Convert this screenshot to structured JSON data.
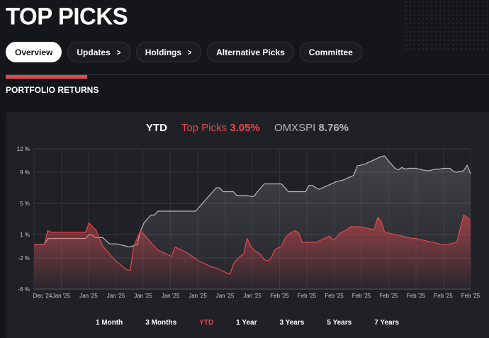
{
  "page": {
    "title": "TOP PICKS"
  },
  "tabs": [
    {
      "label": "Overview",
      "active": true,
      "chevron": false
    },
    {
      "label": "Updates",
      "active": false,
      "chevron": true
    },
    {
      "label": "Holdings",
      "active": false,
      "chevron": true
    },
    {
      "label": "Alternative Picks",
      "active": false,
      "chevron": false
    },
    {
      "label": "Committee",
      "active": false,
      "chevron": false
    }
  ],
  "section": {
    "title": "PORTFOLIO RETURNS"
  },
  "legend": {
    "period": "YTD",
    "top_picks_label": "Top Picks",
    "top_picks_value": "3.05%",
    "omx_label": "OMXSPI",
    "omx_value": "8.76%"
  },
  "colors": {
    "top_picks": "#e5484d",
    "omxspi": "#9a9ba1",
    "accent": "#e5484d",
    "background": "#15161a",
    "card": "#202127"
  },
  "ranges": [
    {
      "label": "1 Month",
      "active": false
    },
    {
      "label": "3 Months",
      "active": false
    },
    {
      "label": "YTD",
      "active": true
    },
    {
      "label": "1 Year",
      "active": false
    },
    {
      "label": "3 Years",
      "active": false
    },
    {
      "label": "5 Years",
      "active": false
    },
    {
      "label": "7 Years",
      "active": false
    }
  ],
  "chart_data": {
    "type": "area",
    "ylim": [
      -6,
      12
    ],
    "y_ticks": [
      12,
      9,
      5,
      1,
      -2,
      -6
    ],
    "y_tick_labels": [
      "12 %",
      "9 %",
      "5 %",
      "1 %",
      "-2 %",
      "-6 %"
    ],
    "x_tick_labels": [
      "Dec '24",
      "Jan '25",
      "Jan '25",
      "Jan '25",
      "Jan '25",
      "Jan '25",
      "Jan '25",
      "Jan '25",
      "Jan '25",
      "Feb '25",
      "Feb '25",
      "Feb '25",
      "Feb '25",
      "Feb '25",
      "Feb '25",
      "Feb '25",
      "Feb '25"
    ],
    "grid": true,
    "x": [
      0,
      1,
      2,
      3,
      4,
      5,
      6,
      7,
      8,
      9,
      10,
      11,
      12,
      13,
      14,
      15,
      16,
      17,
      18,
      19,
      20,
      21,
      22,
      23,
      24,
      25,
      26,
      27,
      28,
      29,
      30,
      31,
      32,
      33,
      34,
      35,
      36,
      37,
      38,
      39,
      40,
      41,
      42,
      43,
      44,
      45,
      46,
      47,
      48,
      49,
      50,
      51,
      52,
      53,
      54,
      55,
      56,
      57,
      58,
      59,
      60,
      61,
      62,
      63,
      64,
      65,
      66,
      67,
      68,
      69,
      70,
      71,
      72,
      73,
      74,
      75,
      76,
      77,
      78,
      79,
      80,
      81,
      82,
      83,
      84,
      85,
      86,
      87,
      88,
      89,
      90,
      91,
      92,
      93,
      94,
      95,
      96,
      97,
      98,
      99,
      100,
      101,
      102,
      103,
      104,
      105,
      106,
      107,
      108,
      109,
      110,
      111,
      112,
      113,
      114,
      115,
      116,
      117,
      118,
      119,
      120,
      121,
      122,
      123,
      124,
      125,
      126,
      127
    ],
    "series": [
      {
        "name": "OMXSPI",
        "values": [
          -0.3,
          -0.3,
          -0.3,
          -0.3,
          0.5,
          0.5,
          0.5,
          0.5,
          0.5,
          0.5,
          0.5,
          0.5,
          0.5,
          0.5,
          0.5,
          0.5,
          1.0,
          0.9,
          0.6,
          0.6,
          0.6,
          0.2,
          -0.2,
          -0.2,
          -0.2,
          -0.3,
          -0.4,
          -0.5,
          -0.6,
          -0.4,
          -0.3,
          1.5,
          2.5,
          3.0,
          3.5,
          3.5,
          4.0,
          4.0,
          4.0,
          4.0,
          4.0,
          4.0,
          4.0,
          4.0,
          4.0,
          4.0,
          4.0,
          4.0,
          4.5,
          5.0,
          5.5,
          6.0,
          6.5,
          7.0,
          7.0,
          6.5,
          6.5,
          6.5,
          6.5,
          6.0,
          6.0,
          6.0,
          6.0,
          5.9,
          5.9,
          6.5,
          7.0,
          7.5,
          7.5,
          7.5,
          7.5,
          7.5,
          7.5,
          7.0,
          6.5,
          6.5,
          6.5,
          6.5,
          6.5,
          6.5,
          7.3,
          7.3,
          7.0,
          6.8,
          7.0,
          7.2,
          7.4,
          7.6,
          7.8,
          7.9,
          8.0,
          8.2,
          8.4,
          8.6,
          9.8,
          9.9,
          10.0,
          10.2,
          10.4,
          10.6,
          10.8,
          11.0,
          11.1,
          10.5,
          10.0,
          9.5,
          9.3,
          9.6,
          9.4,
          9.5,
          9.5,
          9.5,
          9.4,
          9.3,
          9.2,
          9.2,
          9.3,
          9.4,
          9.4,
          9.5,
          9.5,
          9.5,
          9.1,
          9.0,
          9.1,
          9.2,
          9.9,
          8.8
        ]
      },
      {
        "name": "Top Picks",
        "values": [
          -0.3,
          -0.3,
          -0.3,
          -0.3,
          1.5,
          1.3,
          1.3,
          1.3,
          1.3,
          1.3,
          1.3,
          1.3,
          1.3,
          1.3,
          1.3,
          1.3,
          2.5,
          2.0,
          1.6,
          0.5,
          -0.5,
          -1.0,
          -1.5,
          -2.0,
          -2.5,
          -2.8,
          -3.2,
          -3.5,
          -3.6,
          -0.5,
          0.5,
          1.5,
          1.0,
          0.5,
          0.0,
          -0.5,
          -1.0,
          -1.2,
          -1.4,
          -1.6,
          -1.8,
          -0.6,
          -0.8,
          -1.0,
          -1.2,
          -1.5,
          -1.8,
          -2.1,
          -2.4,
          -2.6,
          -2.8,
          -3.0,
          -3.2,
          -3.3,
          -3.5,
          -3.7,
          -3.9,
          -4.1,
          -2.8,
          -2.2,
          -1.8,
          -1.5,
          0.5,
          -0.5,
          -1.0,
          -1.3,
          -1.6,
          -2.2,
          -2.4,
          -2.0,
          -1.0,
          -0.7,
          -0.5,
          0.5,
          1.0,
          1.3,
          1.5,
          1.2,
          0.0,
          0.0,
          0.0,
          0.0,
          0.0,
          0.2,
          0.4,
          0.6,
          0.8,
          0.3,
          0.6,
          1.2,
          1.4,
          1.6,
          2.0,
          2.0,
          2.0,
          2.0,
          1.9,
          1.8,
          1.7,
          1.7,
          3.2,
          2.7,
          1.3,
          1.2,
          1.1,
          1.0,
          0.9,
          0.8,
          0.7,
          0.6,
          0.5,
          0.5,
          0.4,
          0.3,
          0.2,
          0.1,
          0.0,
          -0.1,
          -0.2,
          -0.3,
          -0.3,
          -0.2,
          -0.1,
          0.0,
          1.8,
          3.5,
          3.2,
          2.8
        ]
      }
    ]
  }
}
